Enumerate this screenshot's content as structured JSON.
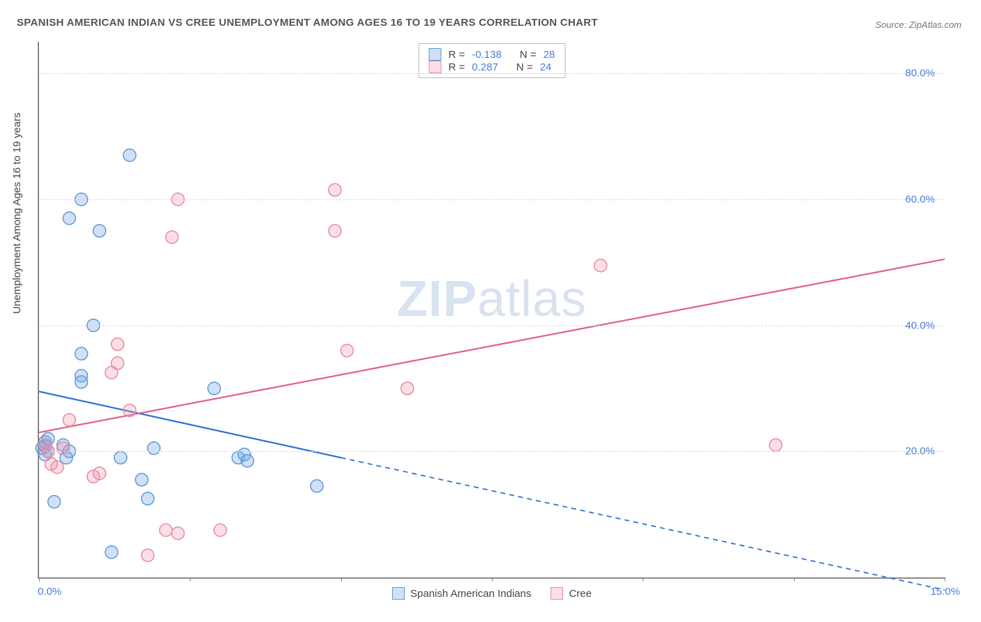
{
  "title": "SPANISH AMERICAN INDIAN VS CREE UNEMPLOYMENT AMONG AGES 16 TO 19 YEARS CORRELATION CHART",
  "source": "Source: ZipAtlas.com",
  "watermark_zip": "ZIP",
  "watermark_atlas": "atlas",
  "y_label": "Unemployment Among Ages 16 to 19 years",
  "chart": {
    "type": "scatter",
    "background_color": "#ffffff",
    "grid_color": "#d8d8d8",
    "axis_color": "#888888",
    "xlim": [
      0,
      15
    ],
    "ylim": [
      0,
      85
    ],
    "x_ticks": [
      0,
      2.5,
      5,
      7.5,
      10,
      12.5,
      15
    ],
    "x_tick_labels": {
      "0": "0.0%",
      "15": "15.0%"
    },
    "y_ticks": [
      20,
      40,
      60,
      80
    ],
    "y_tick_labels": [
      "20.0%",
      "40.0%",
      "60.0%",
      "80.0%"
    ],
    "marker_radius": 9,
    "marker_stroke_width": 1.5,
    "line_width": 2.2
  },
  "series": [
    {
      "name": "Spanish American Indians",
      "fill": "rgba(120,170,230,0.35)",
      "stroke": "#5f99d6",
      "line_color": "#2e6fd0",
      "r_value": "-0.138",
      "n_value": "28",
      "points": [
        [
          0.05,
          20.5
        ],
        [
          0.1,
          20.8
        ],
        [
          0.1,
          21.5
        ],
        [
          0.1,
          19.5
        ],
        [
          0.15,
          22.0
        ],
        [
          0.15,
          20.0
        ],
        [
          0.5,
          57.0
        ],
        [
          0.7,
          60.0
        ],
        [
          0.25,
          12.0
        ],
        [
          0.7,
          32.0
        ],
        [
          0.7,
          31.0
        ],
        [
          0.7,
          35.5
        ],
        [
          0.9,
          40.0
        ],
        [
          1.0,
          55.0
        ],
        [
          1.2,
          4.0
        ],
        [
          1.35,
          19.0
        ],
        [
          1.5,
          67.0
        ],
        [
          1.7,
          15.5
        ],
        [
          1.9,
          20.5
        ],
        [
          1.8,
          12.5
        ],
        [
          2.9,
          30.0
        ],
        [
          3.3,
          19.0
        ],
        [
          3.4,
          19.5
        ],
        [
          3.45,
          18.5
        ],
        [
          4.6,
          14.5
        ],
        [
          0.4,
          21.0
        ],
        [
          0.5,
          20.0
        ],
        [
          0.45,
          19.0
        ]
      ],
      "trend": {
        "x1": 0,
        "y1": 29.5,
        "x2": 5.0,
        "y2": 19.0,
        "dash_to_x": 15.0,
        "dash_to_y": -2.0
      }
    },
    {
      "name": "Cree",
      "fill": "rgba(240,150,170,0.30)",
      "stroke": "#e88aa0",
      "line_color": "#e06088",
      "r_value": "0.287",
      "n_value": "24",
      "points": [
        [
          0.1,
          21.0
        ],
        [
          0.15,
          20.0
        ],
        [
          0.2,
          18.0
        ],
        [
          0.3,
          17.5
        ],
        [
          0.4,
          20.5
        ],
        [
          0.5,
          25.0
        ],
        [
          0.9,
          16.0
        ],
        [
          1.0,
          16.5
        ],
        [
          1.2,
          32.5
        ],
        [
          1.3,
          34.0
        ],
        [
          1.3,
          37.0
        ],
        [
          1.5,
          26.5
        ],
        [
          1.8,
          3.5
        ],
        [
          2.1,
          7.5
        ],
        [
          2.2,
          54.0
        ],
        [
          2.3,
          60.0
        ],
        [
          3.0,
          7.5
        ],
        [
          2.3,
          7.0
        ],
        [
          4.9,
          61.5
        ],
        [
          4.9,
          55.0
        ],
        [
          5.1,
          36.0
        ],
        [
          6.1,
          30.0
        ],
        [
          9.3,
          49.5
        ],
        [
          12.2,
          21.0
        ]
      ],
      "trend": {
        "x1": 0,
        "y1": 23.0,
        "x2": 15.0,
        "y2": 50.5
      }
    }
  ],
  "legend": {
    "r_prefix": "R = ",
    "n_prefix": "N = "
  }
}
